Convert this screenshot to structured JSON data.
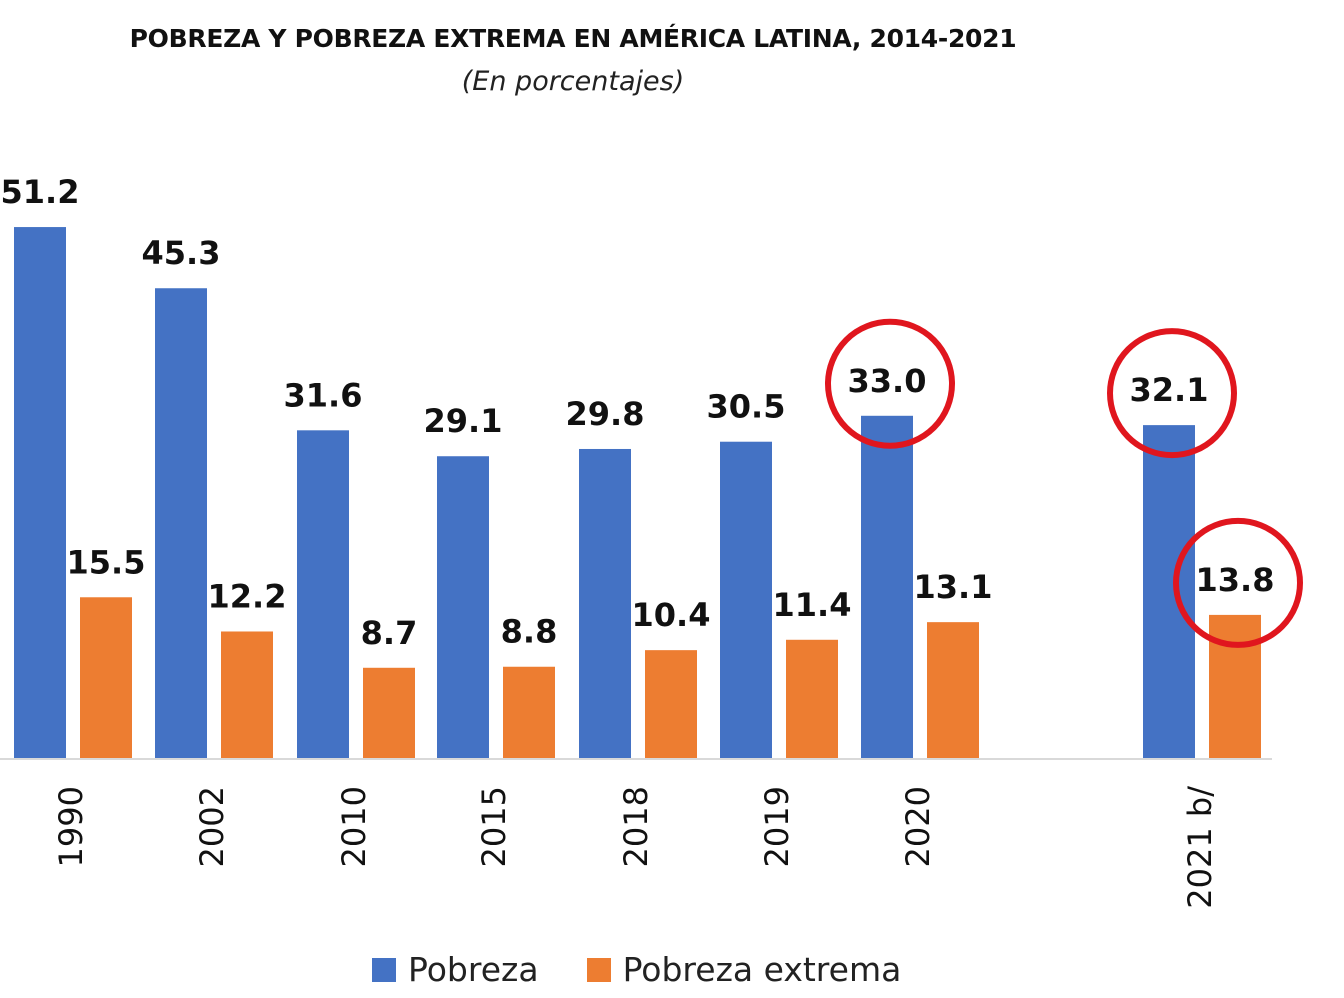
{
  "chart_data": {
    "type": "bar",
    "title": "POBREZA Y POBREZA EXTREMA EN AMÉRICA LATINA, 2014-2021",
    "subtitle": "(En porcentajes)",
    "categories": [
      "1990",
      "2002",
      "2010",
      "2015",
      "2018",
      "2019",
      "2020",
      "2021 b/"
    ],
    "series": [
      {
        "name": "Pobreza",
        "color": "#4472C4",
        "values": [
          51.2,
          45.3,
          31.6,
          29.1,
          29.8,
          30.5,
          33.0,
          32.1
        ],
        "labels": [
          "51.2",
          "45.3",
          "31.6",
          "29.1",
          "29.8",
          "30.5",
          "33.0",
          "32.1"
        ]
      },
      {
        "name": "Pobreza extrema",
        "color": "#ED7D31",
        "values": [
          15.5,
          12.2,
          8.7,
          8.8,
          10.4,
          11.4,
          13.1,
          13.8
        ],
        "labels": [
          "15.5",
          "12.2",
          "8.7",
          "8.8",
          "10.4",
          "11.4",
          "13.1",
          "13.8"
        ]
      }
    ],
    "highlighted": [
      {
        "series": "Pobreza",
        "category": "2020"
      },
      {
        "series": "Pobreza",
        "category": "2021 b/"
      },
      {
        "series": "Pobreza extrema",
        "category": "2021 b/"
      }
    ],
    "highlight_color": "#E0161E",
    "ylim": [
      0,
      52
    ],
    "grid": false,
    "legend_position": "bottom"
  }
}
